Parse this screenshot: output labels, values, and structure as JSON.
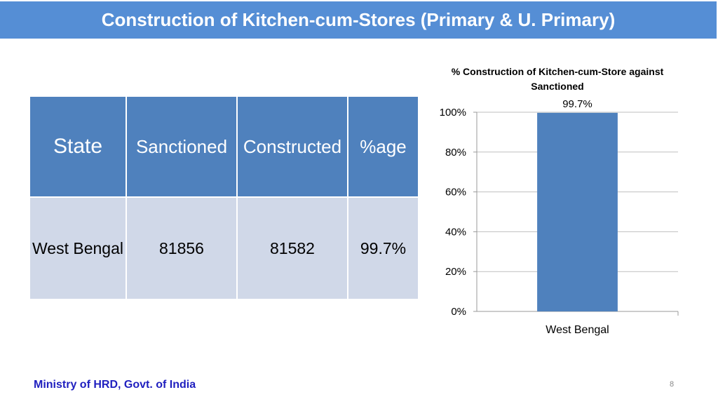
{
  "title": "Construction of Kitchen-cum-Stores (Primary & U. Primary)",
  "table": {
    "headers": [
      "State",
      "Sanctioned",
      "Constructed",
      "%age"
    ],
    "rows": [
      [
        "West Bengal",
        "81856",
        "81582",
        "99.7%"
      ]
    ]
  },
  "chart_data": {
    "type": "bar",
    "title": "% Construction of Kitchen-cum-Store against Sanctioned",
    "categories": [
      "West Bengal"
    ],
    "values": [
      99.7
    ],
    "data_labels": [
      "99.7%"
    ],
    "ylim": [
      0,
      100
    ],
    "yticks": [
      "0%",
      "20%",
      "40%",
      "60%",
      "80%",
      "100%"
    ],
    "grid": true,
    "bar_color": "#4f81bd"
  },
  "footer": "Ministry of HRD, Govt. of India",
  "page_number": "8"
}
